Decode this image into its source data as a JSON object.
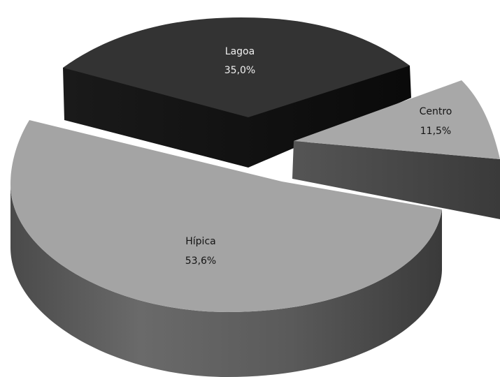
{
  "chart_data": {
    "type": "pie",
    "style": "3d-exploded",
    "slices": [
      {
        "name": "Lagoa",
        "value": 35.0,
        "label": "35,0%",
        "color_top": "#333333",
        "color_side": "#111111"
      },
      {
        "name": "Centro",
        "value": 11.5,
        "label": "11,5%",
        "color_top": "#a8a8a8",
        "color_side": "#4a4a4a"
      },
      {
        "name": "Hípica",
        "value": 53.6,
        "label": "53,6%",
        "color_top": "#a4a4a4",
        "color_side": "#555555"
      }
    ],
    "legend": "none"
  }
}
